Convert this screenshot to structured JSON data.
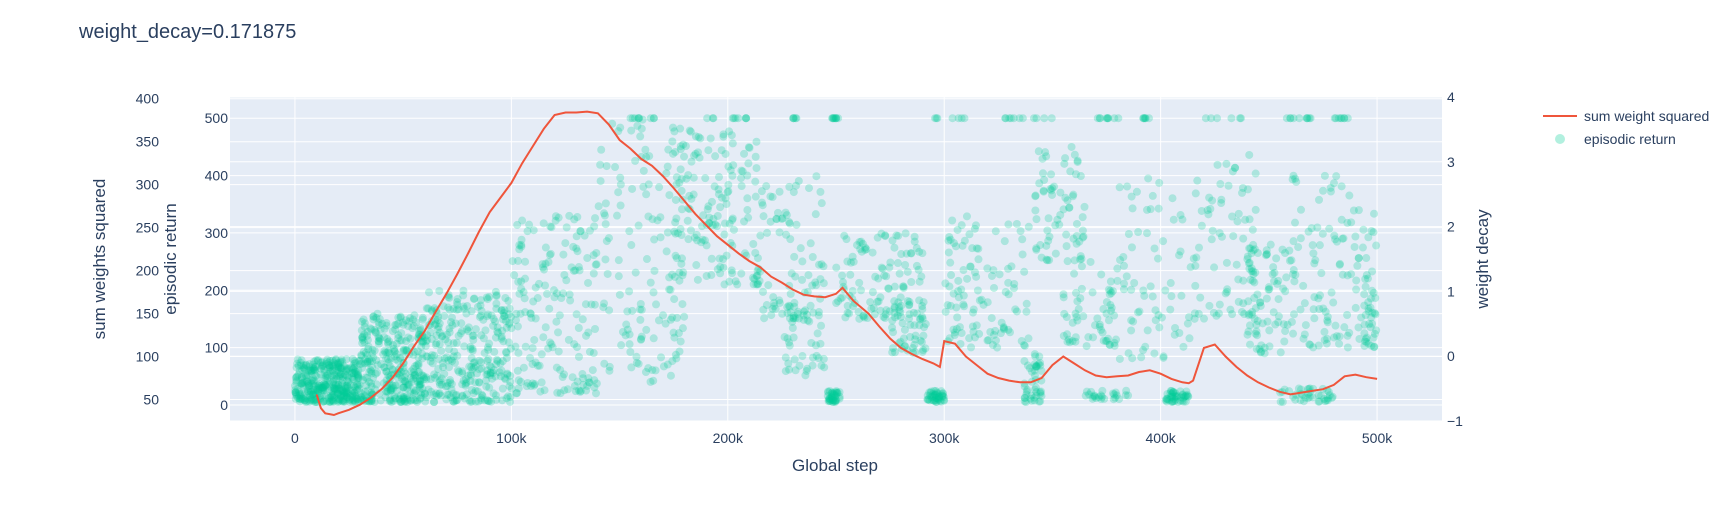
{
  "chart_data": {
    "type": "scatter",
    "title": "weight_decay=0.171875",
    "xlabel": "Global step",
    "x_ticks": [
      "0",
      "100k",
      "200k",
      "300k",
      "400k",
      "500k"
    ],
    "x_tick_values": [
      0,
      100000,
      200000,
      300000,
      400000,
      500000
    ],
    "xlim": [
      -30000,
      530000
    ],
    "axes": {
      "y_sum_weights": {
        "label": "sum weights squared",
        "ticks": [
          "50",
          "100",
          "150",
          "200",
          "250",
          "300",
          "350",
          "400"
        ],
        "tick_values": [
          50,
          100,
          150,
          200,
          250,
          300,
          350,
          400
        ],
        "range": [
          25,
          402
        ]
      },
      "y_return": {
        "label": "episodic return",
        "ticks": [
          "0",
          "100",
          "200",
          "300",
          "400",
          "500"
        ],
        "tick_values": [
          0,
          100,
          200,
          300,
          400,
          500
        ],
        "range": [
          -28,
          537
        ]
      },
      "y_weight_decay": {
        "label": "weight decay",
        "ticks": [
          "−1",
          "0",
          "1",
          "2",
          "3",
          "4"
        ],
        "tick_values": [
          -1,
          0,
          1,
          2,
          3,
          4
        ],
        "range": [
          -1,
          4
        ]
      }
    },
    "legend_position": "top-right",
    "grid": true,
    "colors": {
      "sum_weight_squared": "#EF553B",
      "episodic_return": "#00CC96",
      "plot_bg": "#E5ECF6",
      "grid": "#ffffff",
      "text": "#2a3f5f"
    },
    "series": [
      {
        "name": "sum weight squared",
        "axis": "y_sum_weights",
        "type": "line",
        "x": [
          10000,
          12000,
          14000,
          16000,
          18000,
          20000,
          25000,
          30000,
          35000,
          40000,
          45000,
          50000,
          55000,
          60000,
          65000,
          70000,
          75000,
          80000,
          85000,
          90000,
          95000,
          100000,
          105000,
          110000,
          115000,
          120000,
          125000,
          130000,
          135000,
          140000,
          145000,
          150000,
          155000,
          160000,
          165000,
          170000,
          175000,
          180000,
          185000,
          190000,
          195000,
          200000,
          205000,
          210000,
          215000,
          220000,
          225000,
          230000,
          235000,
          240000,
          245000,
          250000,
          253000,
          258000,
          265000,
          270000,
          275000,
          280000,
          285000,
          290000,
          295000,
          298000,
          300000,
          305000,
          310000,
          315000,
          320000,
          325000,
          330000,
          335000,
          340000,
          345000,
          350000,
          355000,
          360000,
          365000,
          370000,
          375000,
          380000,
          385000,
          390000,
          395000,
          400000,
          405000,
          410000,
          413000,
          415000,
          420000,
          425000,
          430000,
          435000,
          440000,
          445000,
          450000,
          455000,
          460000,
          465000,
          470000,
          475000,
          480000,
          485000,
          490000,
          495000,
          500000
        ],
        "y": [
          56,
          40,
          34,
          33,
          32,
          34,
          38,
          44,
          52,
          62,
          75,
          92,
          112,
          130,
          152,
          173,
          196,
          220,
          245,
          268,
          285,
          302,
          325,
          345,
          365,
          381,
          384,
          384,
          385,
          383,
          370,
          352,
          342,
          330,
          322,
          310,
          296,
          281,
          266,
          253,
          240,
          230,
          220,
          211,
          204,
          193,
          186,
          178,
          172,
          170,
          169,
          173,
          180,
          165,
          150,
          135,
          121,
          110,
          103,
          97,
          92,
          88,
          118,
          115,
          100,
          90,
          80,
          75,
          72,
          70,
          70,
          75,
          90,
          100,
          92,
          84,
          78,
          76,
          77,
          78,
          82,
          84,
          80,
          74,
          70,
          69,
          72,
          110,
          114,
          100,
          88,
          78,
          70,
          64,
          59,
          56,
          58,
          60,
          62,
          67,
          77,
          79,
          76,
          74
        ]
      },
      {
        "name": "episodic return",
        "axis": "y_return",
        "type": "scatter",
        "opacity": 0.25,
        "clusters": [
          {
            "x": [
              0,
              30000
            ],
            "y": [
              5,
              80
            ],
            "n": 380
          },
          {
            "x": [
              30000,
              60000
            ],
            "y": [
              5,
              160
            ],
            "n": 320
          },
          {
            "x": [
              60000,
              100000
            ],
            "y": [
              5,
              200
            ],
            "n": 300
          },
          {
            "x": [
              100000,
              140000
            ],
            "y": [
              20,
              330
            ],
            "n": 170
          },
          {
            "x": [
              140000,
              180000
            ],
            "y": [
              40,
              500
            ],
            "n": 140
          },
          {
            "x": [
              175000,
              215000
            ],
            "y": [
              210,
              480
            ],
            "n": 150
          },
          {
            "x": [
              215000,
              245000
            ],
            "y": [
              150,
              400
            ],
            "n": 80
          },
          {
            "x": [
              225000,
              245000
            ],
            "y": [
              50,
              180
            ],
            "n": 45
          },
          {
            "x": [
              246000,
              252000
            ],
            "y": [
              5,
              25
            ],
            "n": 40
          },
          {
            "x": [
              250000,
              290000
            ],
            "y": [
              150,
              300
            ],
            "n": 110
          },
          {
            "x": [
              275000,
              292000
            ],
            "y": [
              90,
              180
            ],
            "n": 50
          },
          {
            "x": [
              292000,
              300000
            ],
            "y": [
              5,
              25
            ],
            "n": 45
          },
          {
            "x": [
              300000,
              340000
            ],
            "y": [
              100,
              330
            ],
            "n": 110
          },
          {
            "x": [
              337000,
              345000
            ],
            "y": [
              5,
              90
            ],
            "n": 45
          },
          {
            "x": [
              342000,
              365000
            ],
            "y": [
              250,
              450
            ],
            "n": 70
          },
          {
            "x": [
              355000,
              380000
            ],
            "y": [
              100,
              250
            ],
            "n": 60
          },
          {
            "x": [
              365000,
              385000
            ],
            "y": [
              10,
              25
            ],
            "n": 25
          },
          {
            "x": [
              380000,
              415000
            ],
            "y": [
              80,
              420
            ],
            "n": 70
          },
          {
            "x": [
              402000,
              413000
            ],
            "y": [
              5,
              25
            ],
            "n": 45
          },
          {
            "x": [
              415000,
              445000
            ],
            "y": [
              150,
              440
            ],
            "n": 80
          },
          {
            "x": [
              440000,
              460000
            ],
            "y": [
              90,
              280
            ],
            "n": 70
          },
          {
            "x": [
              455000,
              480000
            ],
            "y": [
              5,
              30
            ],
            "n": 40
          },
          {
            "x": [
              460000,
              500000
            ],
            "y": [
              100,
              400
            ],
            "n": 120
          },
          {
            "x": [
              494000,
              500000
            ],
            "y": [
              100,
              200
            ],
            "n": 25
          }
        ],
        "top_band": {
          "y": 500,
          "x_ranges": [
            [
              155000,
              170000
            ],
            [
              190000,
              210000
            ],
            [
              230000,
              232000
            ],
            [
              248000,
              251000
            ],
            [
              290000,
              310000
            ],
            [
              325000,
              350000
            ],
            [
              370000,
              395000
            ],
            [
              418000,
              440000
            ],
            [
              458000,
              470000
            ],
            [
              480000,
              488000
            ]
          ],
          "n": 90
        }
      }
    ]
  }
}
